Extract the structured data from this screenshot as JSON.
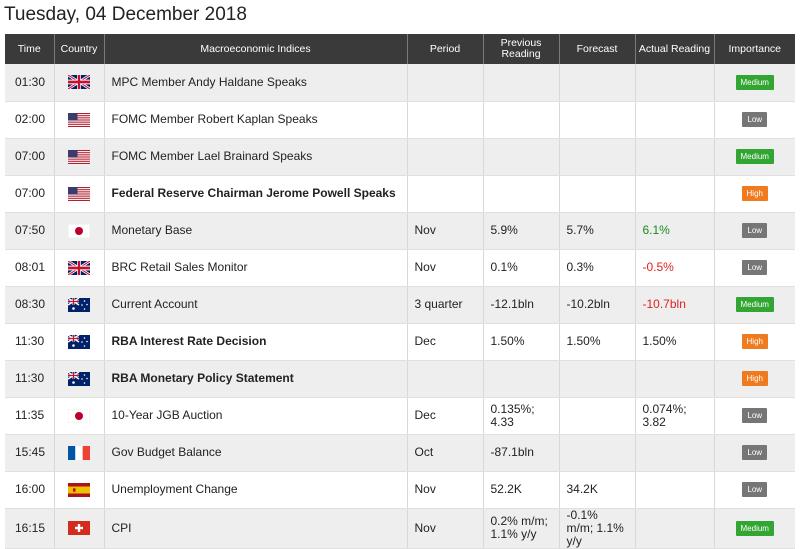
{
  "page": {
    "title": "Tuesday, 04 December 2018"
  },
  "colors": {
    "header_bg": "#3a3a3a",
    "positive": "#1a8a1a",
    "negative": "#e02020",
    "medium": "#33a533",
    "low": "#767676",
    "high": "#f07a1e"
  },
  "table": {
    "headers": {
      "time": "Time",
      "country": "Country",
      "indices": "Macroeconomic Indices",
      "period": "Period",
      "previous": "Previous Reading",
      "forecast": "Forecast",
      "actual": "Actual Reading",
      "importance": "Importance"
    },
    "rows": [
      {
        "time": "01:30",
        "country": "uk",
        "event": "MPC Member Andy Haldane Speaks",
        "bold": false,
        "period": "",
        "previous": "",
        "forecast": "",
        "actual": "",
        "actual_trend": "",
        "importance": "Medium"
      },
      {
        "time": "02:00",
        "country": "us",
        "event": "FOMC Member Robert Kaplan Speaks",
        "bold": false,
        "period": "",
        "previous": "",
        "forecast": "",
        "actual": "",
        "actual_trend": "",
        "importance": "Low"
      },
      {
        "time": "07:00",
        "country": "us",
        "event": "FOMC Member Lael Brainard Speaks",
        "bold": false,
        "period": "",
        "previous": "",
        "forecast": "",
        "actual": "",
        "actual_trend": "",
        "importance": "Medium"
      },
      {
        "time": "07:00",
        "country": "us",
        "event": "Federal Reserve Chairman Jerome Powell Speaks",
        "bold": true,
        "period": "",
        "previous": "",
        "forecast": "",
        "actual": "",
        "actual_trend": "",
        "importance": "High"
      },
      {
        "time": "07:50",
        "country": "jp",
        "event": "Monetary Base",
        "bold": false,
        "period": "Nov",
        "previous": "5.9%",
        "forecast": "5.7%",
        "actual": "6.1%",
        "actual_trend": "pos",
        "importance": "Low"
      },
      {
        "time": "08:01",
        "country": "uk",
        "event": "BRC Retail Sales Monitor",
        "bold": false,
        "period": "Nov",
        "previous": "0.1%",
        "forecast": "0.3%",
        "actual": "-0.5%",
        "actual_trend": "neg",
        "importance": "Low"
      },
      {
        "time": "08:30",
        "country": "au",
        "event": "Current Account",
        "bold": false,
        "period": "3 quarter",
        "previous": "-12.1bln",
        "forecast": "-10.2bln",
        "actual": "-10.7bln",
        "actual_trend": "neg",
        "importance": "Medium"
      },
      {
        "time": "11:30",
        "country": "au",
        "event": "RBA Interest Rate Decision",
        "bold": true,
        "period": "Dec",
        "previous": "1.50%",
        "forecast": "1.50%",
        "actual": "1.50%",
        "actual_trend": "",
        "importance": "High"
      },
      {
        "time": "11:30",
        "country": "au",
        "event": "RBA Monetary Policy Statement",
        "bold": true,
        "period": "",
        "previous": "",
        "forecast": "",
        "actual": "",
        "actual_trend": "",
        "importance": "High"
      },
      {
        "time": "11:35",
        "country": "jp",
        "event": "10-Year JGB Auction",
        "bold": false,
        "period": "Dec",
        "previous": "0.135%; 4.33",
        "forecast": "",
        "actual": "0.074%; 3.82",
        "actual_trend": "",
        "importance": "Low"
      },
      {
        "time": "15:45",
        "country": "fr",
        "event": "Gov Budget Balance",
        "bold": false,
        "period": "Oct",
        "previous": "-87.1bln",
        "forecast": "",
        "actual": "",
        "actual_trend": "",
        "importance": "Low"
      },
      {
        "time": "16:00",
        "country": "es",
        "event": "Unemployment Change",
        "bold": false,
        "period": "Nov",
        "previous": "52.2K",
        "forecast": "34.2K",
        "actual": "",
        "actual_trend": "",
        "importance": "Low"
      },
      {
        "time": "16:15",
        "country": "ch",
        "event": "CPI",
        "bold": false,
        "period": "Nov",
        "previous": "0.2% m/m; 1.1% y/y",
        "forecast": "-0.1% m/m; 1.1% y/y",
        "actual": "",
        "actual_trend": "",
        "importance": "Medium"
      }
    ]
  }
}
